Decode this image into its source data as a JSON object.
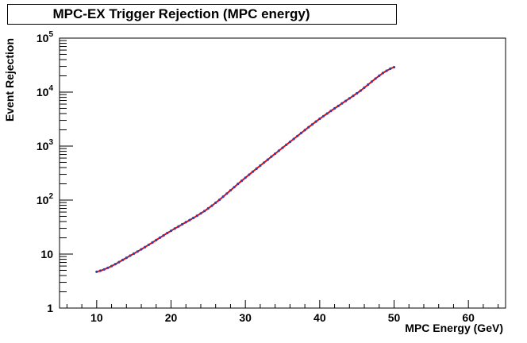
{
  "chart_data": {
    "type": "line",
    "title": "MPC-EX Trigger Rejection (MPC energy)",
    "xlabel": "MPC Energy (GeV)",
    "ylabel": "Event Rejection",
    "xlim": [
      5,
      65
    ],
    "ylim": [
      1,
      100000
    ],
    "yscale": "log",
    "xticks": [
      "10",
      "20",
      "30",
      "40",
      "50",
      "60"
    ],
    "yticks": [
      {
        "base": "1",
        "exp": ""
      },
      {
        "base": "10",
        "exp": ""
      },
      {
        "base": "10",
        "exp": "2"
      },
      {
        "base": "10",
        "exp": "3"
      },
      {
        "base": "10",
        "exp": "4"
      },
      {
        "base": "10",
        "exp": "5"
      }
    ],
    "grid": false,
    "series": [
      {
        "line_color": "#ff0000",
        "marker_color": "#3d3d9e",
        "x": [
          10,
          15,
          20,
          25,
          30,
          35,
          40,
          45,
          50
        ],
        "y": [
          4.7,
          10.2,
          27,
          70,
          260,
          930,
          3200,
          9500,
          29000
        ]
      }
    ]
  }
}
